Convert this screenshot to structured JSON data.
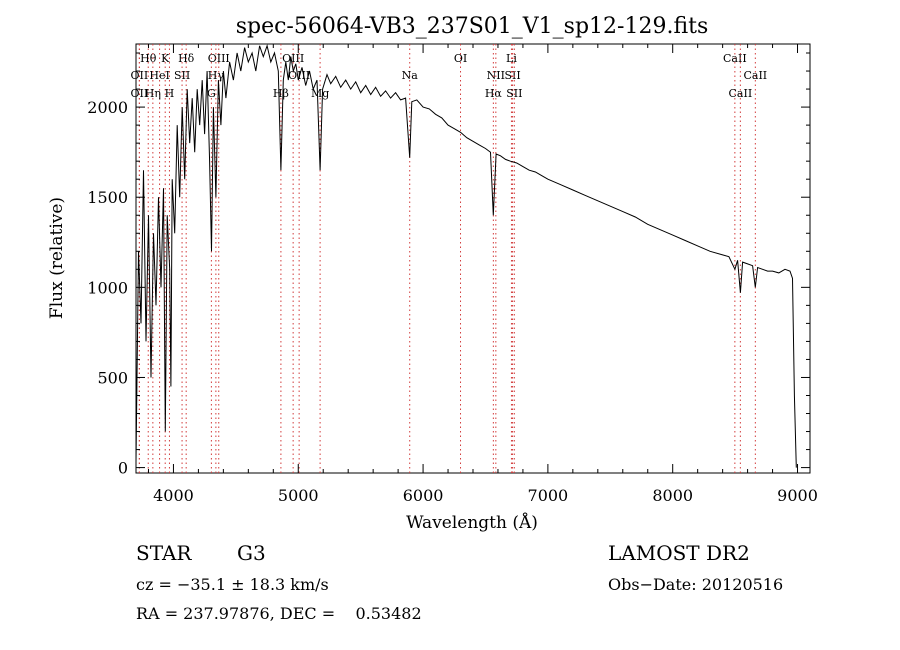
{
  "chart_data": {
    "type": "line",
    "title": "spec-56064-VB3_237S01_V1_sp12-129.fits",
    "xlabel": "Wavelength (Å)",
    "ylabel": "Flux (relative)",
    "xlim": [
      3700,
      9100
    ],
    "ylim": [
      -30,
      2350
    ],
    "xticks": [
      4000,
      5000,
      6000,
      7000,
      8000,
      9000
    ],
    "yticks": [
      0,
      500,
      1000,
      1500,
      2000
    ],
    "grid": false,
    "series": [
      {
        "color": "#000000",
        "points": [
          [
            3700,
            30
          ],
          [
            3720,
            1200
          ],
          [
            3740,
            800
          ],
          [
            3760,
            1650
          ],
          [
            3780,
            700
          ],
          [
            3800,
            1400
          ],
          [
            3820,
            500
          ],
          [
            3840,
            1300
          ],
          [
            3860,
            900
          ],
          [
            3880,
            1500
          ],
          [
            3900,
            1000
          ],
          [
            3920,
            1550
          ],
          [
            3935,
            200
          ],
          [
            3950,
            1400
          ],
          [
            3970,
            1100
          ],
          [
            3980,
            450
          ],
          [
            3990,
            1600
          ],
          [
            4010,
            1300
          ],
          [
            4030,
            1900
          ],
          [
            4050,
            1500
          ],
          [
            4070,
            2000
          ],
          [
            4090,
            1600
          ],
          [
            4110,
            2100
          ],
          [
            4130,
            1800
          ],
          [
            4150,
            2050
          ],
          [
            4170,
            1750
          ],
          [
            4190,
            2100
          ],
          [
            4210,
            1900
          ],
          [
            4230,
            2150
          ],
          [
            4250,
            1850
          ],
          [
            4270,
            2200
          ],
          [
            4290,
            1700
          ],
          [
            4305,
            1200
          ],
          [
            4320,
            2000
          ],
          [
            4340,
            1500
          ],
          [
            4360,
            2150
          ],
          [
            4380,
            1900
          ],
          [
            4400,
            2200
          ],
          [
            4420,
            2050
          ],
          [
            4450,
            2250
          ],
          [
            4480,
            2150
          ],
          [
            4510,
            2300
          ],
          [
            4540,
            2200
          ],
          [
            4570,
            2330
          ],
          [
            4600,
            2250
          ],
          [
            4630,
            2300
          ],
          [
            4660,
            2200
          ],
          [
            4690,
            2340
          ],
          [
            4720,
            2280
          ],
          [
            4750,
            2340
          ],
          [
            4780,
            2250
          ],
          [
            4810,
            2300
          ],
          [
            4840,
            2200
          ],
          [
            4861,
            1650
          ],
          [
            4880,
            2150
          ],
          [
            4900,
            2250
          ],
          [
            4920,
            2150
          ],
          [
            4940,
            2280
          ],
          [
            4960,
            2200
          ],
          [
            4980,
            2240
          ],
          [
            5000,
            2150
          ],
          [
            5030,
            2220
          ],
          [
            5060,
            2120
          ],
          [
            5090,
            2200
          ],
          [
            5120,
            2100
          ],
          [
            5150,
            2150
          ],
          [
            5175,
            1650
          ],
          [
            5195,
            2100
          ],
          [
            5230,
            2180
          ],
          [
            5260,
            2130
          ],
          [
            5300,
            2170
          ],
          [
            5340,
            2110
          ],
          [
            5380,
            2150
          ],
          [
            5420,
            2100
          ],
          [
            5460,
            2140
          ],
          [
            5500,
            2080
          ],
          [
            5540,
            2120
          ],
          [
            5580,
            2070
          ],
          [
            5620,
            2110
          ],
          [
            5660,
            2060
          ],
          [
            5700,
            2090
          ],
          [
            5740,
            2050
          ],
          [
            5780,
            2080
          ],
          [
            5820,
            2040
          ],
          [
            5860,
            2050
          ],
          [
            5893,
            1720
          ],
          [
            5910,
            2030
          ],
          [
            5950,
            2040
          ],
          [
            6000,
            2000
          ],
          [
            6050,
            1990
          ],
          [
            6100,
            1960
          ],
          [
            6150,
            1940
          ],
          [
            6200,
            1900
          ],
          [
            6250,
            1880
          ],
          [
            6300,
            1860
          ],
          [
            6350,
            1830
          ],
          [
            6400,
            1810
          ],
          [
            6450,
            1790
          ],
          [
            6500,
            1770
          ],
          [
            6540,
            1750
          ],
          [
            6563,
            1400
          ],
          [
            6585,
            1740
          ],
          [
            6620,
            1730
          ],
          [
            6660,
            1710
          ],
          [
            6700,
            1700
          ],
          [
            6750,
            1690
          ],
          [
            6800,
            1670
          ],
          [
            6850,
            1650
          ],
          [
            6900,
            1640
          ],
          [
            6950,
            1620
          ],
          [
            7000,
            1600
          ],
          [
            7100,
            1570
          ],
          [
            7200,
            1540
          ],
          [
            7300,
            1510
          ],
          [
            7400,
            1480
          ],
          [
            7500,
            1450
          ],
          [
            7600,
            1420
          ],
          [
            7700,
            1390
          ],
          [
            7800,
            1350
          ],
          [
            7900,
            1320
          ],
          [
            8000,
            1290
          ],
          [
            8100,
            1260
          ],
          [
            8200,
            1230
          ],
          [
            8300,
            1200
          ],
          [
            8400,
            1180
          ],
          [
            8450,
            1170
          ],
          [
            8498,
            1100
          ],
          [
            8520,
            1150
          ],
          [
            8542,
            970
          ],
          [
            8560,
            1140
          ],
          [
            8600,
            1130
          ],
          [
            8640,
            1120
          ],
          [
            8662,
            1000
          ],
          [
            8680,
            1110
          ],
          [
            8720,
            1100
          ],
          [
            8760,
            1090
          ],
          [
            8800,
            1090
          ],
          [
            8850,
            1080
          ],
          [
            8900,
            1100
          ],
          [
            8940,
            1090
          ],
          [
            8960,
            1050
          ],
          [
            8975,
            400
          ],
          [
            8990,
            0
          ]
        ]
      }
    ],
    "line_markers": [
      {
        "label": "Hθ",
        "x": 3798,
        "row": 0
      },
      {
        "label": "K",
        "x": 3934,
        "row": 0
      },
      {
        "label": "Hδ",
        "x": 4102,
        "row": 0
      },
      {
        "label": "OIII",
        "x": 4363,
        "row": 0
      },
      {
        "label": "OIII",
        "x": 4959,
        "row": 0
      },
      {
        "label": "OI",
        "x": 6300,
        "row": 0
      },
      {
        "label": "Li",
        "x": 6708,
        "row": 0
      },
      {
        "label": "CaII",
        "x": 8498,
        "row": 0
      },
      {
        "label": "OII",
        "x": 3727,
        "row": 1
      },
      {
        "label": "HeI",
        "x": 3889,
        "row": 1
      },
      {
        "label": "SII",
        "x": 4069,
        "row": 1
      },
      {
        "label": "Hγ",
        "x": 4340,
        "row": 1
      },
      {
        "label": "OIII",
        "x": 5007,
        "row": 1
      },
      {
        "label": "Na",
        "x": 5893,
        "row": 1
      },
      {
        "label": "NII",
        "x": 6583,
        "row": 1
      },
      {
        "label": "SII",
        "x": 6717,
        "row": 1
      },
      {
        "label": "CaII",
        "x": 8662,
        "row": 1
      },
      {
        "label": "OII",
        "x": 3727,
        "row": 2
      },
      {
        "label": "Hη",
        "x": 3835,
        "row": 2
      },
      {
        "label": "H",
        "x": 3968,
        "row": 2
      },
      {
        "label": "G",
        "x": 4304,
        "row": 2
      },
      {
        "label": "Hβ",
        "x": 4861,
        "row": 2
      },
      {
        "label": "Mg",
        "x": 5175,
        "row": 2
      },
      {
        "label": "Hα",
        "x": 6563,
        "row": 2
      },
      {
        "label": "SII",
        "x": 6731,
        "row": 2
      },
      {
        "label": "CaII",
        "x": 8542,
        "row": 2
      }
    ]
  },
  "info": {
    "object_class": "STAR",
    "subclass": "G3",
    "survey": "LAMOST DR2",
    "cz": "cz = −35.1 ± 18.3 km/s",
    "obs_date": "Obs−Date: 20120516",
    "coords": "RA = 237.97876, DEC =    0.53482"
  }
}
